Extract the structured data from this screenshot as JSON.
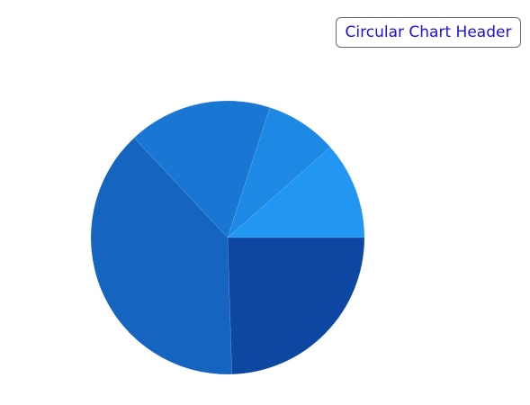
{
  "header": {
    "title": "Circular Chart Header"
  },
  "chart_data": {
    "type": "pie",
    "title": "Circular Chart Header",
    "start_angle_deg": 0,
    "direction": "counterclockwise",
    "legend": "none",
    "slices": [
      {
        "value": 11.5,
        "color": "#2196f3"
      },
      {
        "value": 8.5,
        "color": "#1e88e5"
      },
      {
        "value": 17,
        "color": "#1976d2"
      },
      {
        "value": 38.5,
        "color": "#1565c0"
      },
      {
        "value": 24.5,
        "color": "#0d47a1"
      }
    ]
  }
}
